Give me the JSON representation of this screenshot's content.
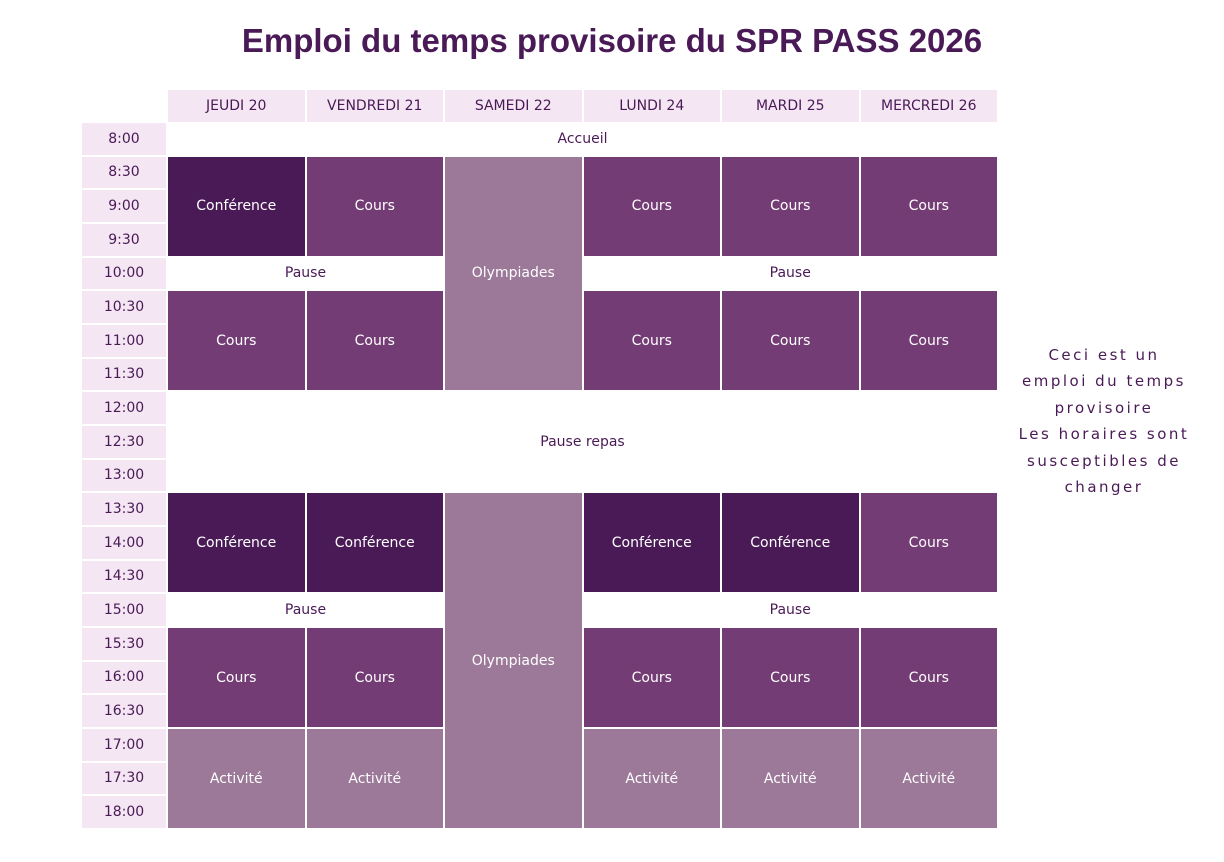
{
  "title": "Emploi du temps provisoire du SPR PASS 2026",
  "days": [
    "JEUDI 20",
    "VENDREDI 21",
    "SAMEDI 22",
    "LUNDI 24",
    "MARDI 25",
    "MERCREDI 26"
  ],
  "times": [
    "8:00",
    "8:30",
    "9:00",
    "9:30",
    "10:00",
    "10:30",
    "11:00",
    "11:30",
    "12:00",
    "12:30",
    "13:00",
    "13:30",
    "14:00",
    "14:30",
    "15:00",
    "15:30",
    "16:00",
    "16:30",
    "17:00",
    "17:30",
    "18:00"
  ],
  "blocks": [
    {
      "label": "Accueil"
    },
    {
      "label": "Conférence"
    },
    {
      "label": "Cours"
    },
    {
      "label": "Olympiades"
    },
    {
      "label": "Cours"
    },
    {
      "label": "Cours"
    },
    {
      "label": "Cours"
    },
    {
      "label": "Pause"
    },
    {
      "label": "Pause"
    },
    {
      "label": "Cours"
    },
    {
      "label": "Cours"
    },
    {
      "label": "Cours"
    },
    {
      "label": "Cours"
    },
    {
      "label": "Cours"
    },
    {
      "label": "Pause repas"
    },
    {
      "label": "Conférence"
    },
    {
      "label": "Conférence"
    },
    {
      "label": "Olympiades"
    },
    {
      "label": "Conférence"
    },
    {
      "label": "Conférence"
    },
    {
      "label": "Cours"
    },
    {
      "label": "Pause"
    },
    {
      "label": "Pause"
    },
    {
      "label": "Cours"
    },
    {
      "label": "Cours"
    },
    {
      "label": "Cours"
    },
    {
      "label": "Cours"
    },
    {
      "label": "Cours"
    },
    {
      "label": "Activité"
    },
    {
      "label": "Activité"
    },
    {
      "label": "Activité"
    },
    {
      "label": "Activité"
    },
    {
      "label": "Activité"
    }
  ],
  "note": [
    "Ceci est un",
    "emploi du temps",
    "provisoire",
    "Les horaires sont",
    "susceptibles de",
    "changer"
  ]
}
